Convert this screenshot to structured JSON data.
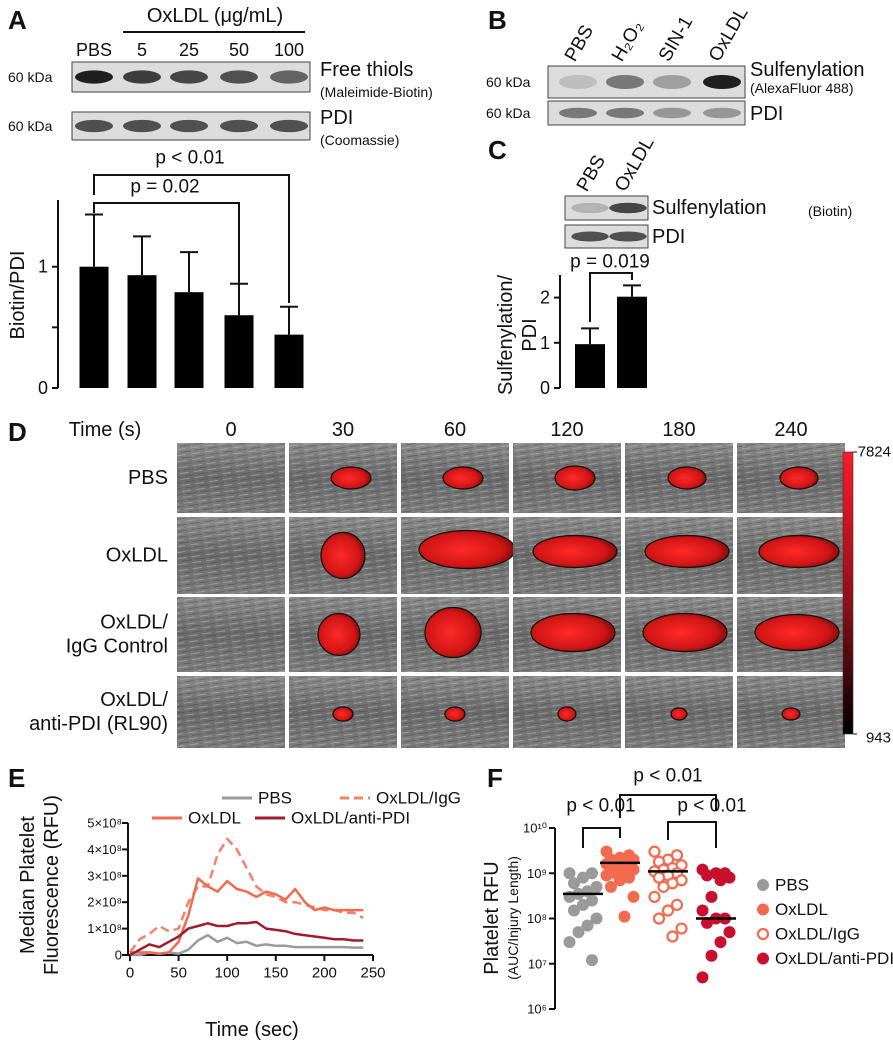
{
  "panel_labels": [
    "A",
    "B",
    "C",
    "D",
    "E",
    "F"
  ],
  "panel_a_blot": {
    "header": "OxLDL (μg/mL)",
    "lanes": [
      "PBS",
      "5",
      "25",
      "50",
      "100"
    ],
    "rows": [
      {
        "mw": "60 kDa",
        "label": "Free thiols",
        "sublabel": "(Maleimide-Biotin)"
      },
      {
        "mw": "60 kDa",
        "label": "PDI",
        "sublabel": "(Coomassie)"
      }
    ]
  },
  "panel_b_blot": {
    "lanes": [
      "PBS",
      "H₂O₂",
      "SIN-1",
      "OxLDL"
    ],
    "rows": [
      {
        "mw": "60 kDa",
        "label": "Sulfenylation",
        "sublabel": "(AlexaFluor 488)"
      },
      {
        "mw": "60 kDa",
        "label": "PDI"
      }
    ]
  },
  "panel_c_blot": {
    "lanes": [
      "PBS",
      "OxLDL"
    ],
    "rows": [
      {
        "label": "Sulfenylation",
        "sublabel": "(Biotin)"
      },
      {
        "label": "PDI"
      }
    ]
  },
  "panel_d": {
    "header": "Time (s)",
    "times": [
      0,
      30,
      60,
      120,
      180,
      240
    ],
    "rows": [
      [
        "PBS"
      ],
      [
        "OxLDL"
      ],
      [
        "OxLDL/",
        "IgG Control"
      ],
      [
        "OxLDL/",
        "anti-PDI (RL90)"
      ]
    ],
    "colorbar": {
      "max": 7824,
      "min": 943
    }
  },
  "chart_data": [
    {
      "type": "bar",
      "ylabel": "Biotin/PDI",
      "values": [
        1.0,
        0.93,
        0.79,
        0.6,
        0.44
      ],
      "errors": [
        0.43,
        0.32,
        0.33,
        0.26,
        0.23
      ],
      "color": "#000000",
      "ylim": [
        0,
        1.55
      ],
      "yticks": [
        0,
        1
      ],
      "minor_yticks": [
        0.5
      ],
      "annotations": [
        "p = 0.02",
        "p < 0.01"
      ]
    },
    {
      "type": "bar",
      "ylabel": [
        "Sulfenylation/",
        "PDI"
      ],
      "values": [
        0.97,
        2.02
      ],
      "errors": [
        0.35,
        0.25
      ],
      "color": "#000000",
      "ylim": [
        0,
        2.5
      ],
      "yticks": [
        0,
        1,
        2
      ],
      "annotations": [
        "p = 0.019"
      ]
    },
    {
      "type": "line",
      "ylabel": [
        "Median Platelet",
        "Fluorescence (RFU)"
      ],
      "xlabel": "Time (sec)",
      "x": [
        0,
        10,
        20,
        30,
        40,
        50,
        60,
        70,
        80,
        90,
        100,
        110,
        120,
        130,
        140,
        150,
        160,
        170,
        180,
        190,
        200,
        210,
        220,
        230,
        240
      ],
      "xlim": [
        0,
        250
      ],
      "xticks": [
        0,
        50,
        100,
        150,
        200,
        250
      ],
      "ylim": [
        0,
        500000000
      ],
      "yticks": [
        0,
        {
          "value": 100000000,
          "label": "1×10⁸"
        },
        {
          "value": 200000000,
          "label": "2×10⁸"
        },
        {
          "value": 300000000,
          "label": "3×10⁸"
        },
        {
          "value": 400000000,
          "label": "4×10⁸"
        },
        {
          "value": 500000000,
          "label": "5×10⁸"
        }
      ],
      "series": [
        {
          "name": "PBS",
          "color": "#9a9a9a",
          "dashed": false,
          "values": [
            0,
            0,
            10000000,
            5000000,
            10000000,
            5000000,
            20000000,
            55000000,
            75000000,
            50000000,
            65000000,
            45000000,
            50000000,
            35000000,
            40000000,
            35000000,
            35000000,
            30000000,
            30000000,
            30000000,
            30000000,
            30000000,
            30000000,
            28000000,
            28000000
          ]
        },
        {
          "name": "OxLDL/IgG",
          "color": "#f4826a",
          "dashed": true,
          "values": [
            10000000,
            60000000,
            80000000,
            110000000,
            90000000,
            100000000,
            200000000,
            260000000,
            260000000,
            380000000,
            440000000,
            400000000,
            330000000,
            260000000,
            230000000,
            220000000,
            200000000,
            200000000,
            190000000,
            180000000,
            170000000,
            170000000,
            160000000,
            160000000,
            140000000
          ]
        },
        {
          "name": "OxLDL",
          "color": "#f26b4f",
          "dashed": false,
          "values": [
            10000000,
            10000000,
            10000000,
            5000000,
            10000000,
            50000000,
            150000000,
            290000000,
            260000000,
            240000000,
            280000000,
            250000000,
            240000000,
            220000000,
            240000000,
            230000000,
            210000000,
            250000000,
            200000000,
            170000000,
            180000000,
            170000000,
            170000000,
            170000000,
            170000000
          ]
        },
        {
          "name": "OxLDL/anti-PDI",
          "color": "#a01c2c",
          "dashed": false,
          "values": [
            0,
            20000000,
            40000000,
            30000000,
            50000000,
            70000000,
            100000000,
            110000000,
            120000000,
            110000000,
            110000000,
            120000000,
            120000000,
            125000000,
            100000000,
            95000000,
            90000000,
            80000000,
            75000000,
            70000000,
            65000000,
            60000000,
            60000000,
            55000000,
            55000000
          ]
        }
      ]
    },
    {
      "type": "strip",
      "ylabel": [
        "Platelet RFU",
        "(AUC/Injury Length)"
      ],
      "log": true,
      "ylim": [
        1000000.0,
        10000000000.0
      ],
      "yticks": [
        {
          "value": 1000000.0,
          "label": "10⁶"
        },
        {
          "value": 10000000.0,
          "label": "10⁷"
        },
        {
          "value": 100000000.0,
          "label": "10⁸"
        },
        {
          "value": 1000000000.0,
          "label": "10⁹"
        },
        {
          "value": 10000000000.0,
          "label": "10¹⁰"
        }
      ],
      "annotations": [
        "p < 0.01",
        "p < 0.01",
        "p < 0.01"
      ],
      "series": [
        {
          "name": "PBS",
          "color": "#9a9a9a",
          "marker": "filled",
          "median": 350000000,
          "values": [
            1000000000.0,
            1000000000.0,
            800000000.0,
            600000000.0,
            500000000.0,
            400000000.0,
            350000000.0,
            300000000.0,
            250000000.0,
            200000000.0,
            150000000.0,
            100000000.0,
            70000000.0,
            50000000.0,
            30000000.0,
            12000000.0
          ]
        },
        {
          "name": "OxLDL",
          "color": "#f26b4f",
          "marker": "filled",
          "median": 1700000000,
          "values": [
            3000000000.0,
            2500000000.0,
            2200000000.0,
            2000000000.0,
            2000000000.0,
            1800000000.0,
            1700000000.0,
            1600000000.0,
            1500000000.0,
            1400000000.0,
            1300000000.0,
            1200000000.0,
            1100000000.0,
            1000000000.0,
            900000000.0,
            800000000.0,
            700000000.0,
            500000000.0,
            300000000.0,
            110000000.0
          ]
        },
        {
          "name": "OxLDL/IgG",
          "color": "#f26b4f",
          "marker": "open",
          "median": 1100000000,
          "values": [
            3000000000.0,
            2500000000.0,
            2000000000.0,
            1800000000.0,
            1500000000.0,
            1300000000.0,
            1200000000.0,
            1100000000.0,
            1000000000.0,
            900000000.0,
            800000000.0,
            700000000.0,
            600000000.0,
            500000000.0,
            300000000.0,
            200000000.0,
            150000000.0,
            100000000.0,
            60000000.0,
            40000000.0
          ]
        },
        {
          "name": "OxLDL/anti-PDI",
          "color": "#c8102e",
          "marker": "filled",
          "median": 100000000,
          "values": [
            1200000000.0,
            1000000000.0,
            1000000000.0,
            900000000.0,
            800000000.0,
            700000000.0,
            300000000.0,
            150000000.0,
            100000000.0,
            100000000.0,
            80000000.0,
            50000000.0,
            30000000.0,
            15000000.0,
            5000000.0
          ]
        }
      ]
    }
  ]
}
